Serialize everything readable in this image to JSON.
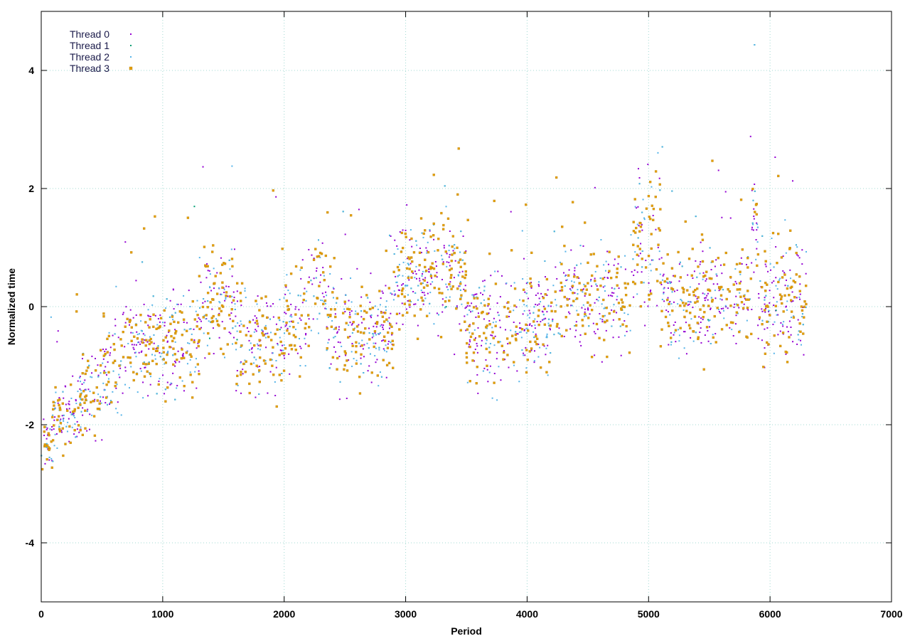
{
  "chart_data": {
    "type": "scatter",
    "title": "",
    "xlabel": "Period",
    "ylabel": "Normalized time",
    "xlim": [
      0,
      7000
    ],
    "ylim": [
      -5,
      5
    ],
    "xticks": [
      "0",
      "1000",
      "2000",
      "3000",
      "4000",
      "5000",
      "6000",
      "7000"
    ],
    "yticks": [
      "-4",
      "-2",
      "0",
      "2",
      "4"
    ],
    "grid": true,
    "legend_position": "top-left",
    "series": [
      {
        "name": "Thread 0",
        "color": "#9400d3",
        "marker": "dot"
      },
      {
        "name": "Thread 1",
        "color": "#009e73",
        "marker": "dot"
      },
      {
        "name": "Thread 2",
        "color": "#56b4e9",
        "marker": "dot"
      },
      {
        "name": "Thread 3",
        "color": "#e69f00",
        "marker": "square"
      }
    ],
    "distribution_by_period": [
      {
        "from": 0,
        "to": 100,
        "center": -2.3,
        "spread": 0.3
      },
      {
        "from": 100,
        "to": 300,
        "center": -1.9,
        "spread": 0.4
      },
      {
        "from": 300,
        "to": 500,
        "center": -1.5,
        "spread": 0.5
      },
      {
        "from": 500,
        "to": 650,
        "center": -1.1,
        "spread": 0.5
      },
      {
        "from": 650,
        "to": 900,
        "center": -0.7,
        "spread": 0.6
      },
      {
        "from": 900,
        "to": 1300,
        "center": -0.6,
        "spread": 0.6
      },
      {
        "from": 1300,
        "to": 1600,
        "center": 0.1,
        "spread": 0.6
      },
      {
        "from": 1600,
        "to": 2000,
        "center": -0.6,
        "spread": 0.6
      },
      {
        "from": 2000,
        "to": 2200,
        "center": -0.3,
        "spread": 0.6
      },
      {
        "from": 2200,
        "to": 2350,
        "center": 0.5,
        "spread": 0.6
      },
      {
        "from": 2350,
        "to": 2900,
        "center": -0.4,
        "spread": 0.6
      },
      {
        "from": 2900,
        "to": 3500,
        "center": 0.5,
        "spread": 0.6
      },
      {
        "from": 3500,
        "to": 3850,
        "center": -0.4,
        "spread": 0.6
      },
      {
        "from": 3850,
        "to": 4200,
        "center": -0.3,
        "spread": 0.6
      },
      {
        "from": 4200,
        "to": 4850,
        "center": 0.1,
        "spread": 0.6
      },
      {
        "from": 4850,
        "to": 5100,
        "center": 1.2,
        "spread": 0.8
      },
      {
        "from": 5100,
        "to": 5500,
        "center": 0.1,
        "spread": 0.6
      },
      {
        "from": 5500,
        "to": 5850,
        "center": 0.2,
        "spread": 0.6
      },
      {
        "from": 5850,
        "to": 5900,
        "center": 1.5,
        "spread": 0.7
      },
      {
        "from": 5900,
        "to": 6300,
        "center": 0.1,
        "spread": 0.7
      }
    ]
  }
}
